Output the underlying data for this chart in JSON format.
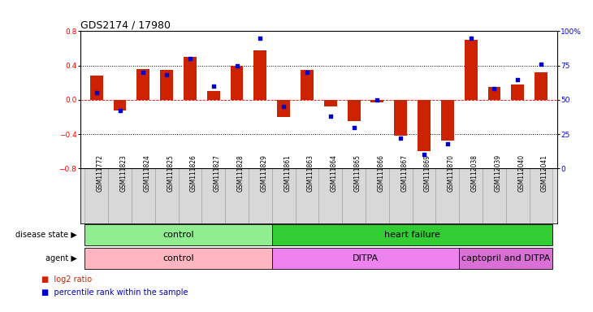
{
  "title": "GDS2174 / 17980",
  "samples": [
    "GSM111772",
    "GSM111823",
    "GSM111824",
    "GSM111825",
    "GSM111826",
    "GSM111827",
    "GSM111828",
    "GSM111829",
    "GSM111861",
    "GSM111863",
    "GSM111864",
    "GSM111865",
    "GSM111866",
    "GSM111867",
    "GSM111869",
    "GSM111870",
    "GSM112038",
    "GSM112039",
    "GSM112040",
    "GSM112041"
  ],
  "log2_ratio": [
    0.28,
    -0.12,
    0.36,
    0.35,
    0.5,
    0.1,
    0.4,
    0.58,
    -0.2,
    0.35,
    -0.08,
    -0.25,
    -0.03,
    -0.42,
    -0.6,
    -0.47,
    0.7,
    0.15,
    0.18,
    0.32
  ],
  "percentile_rank": [
    55,
    42,
    70,
    68,
    80,
    60,
    75,
    95,
    45,
    70,
    38,
    30,
    50,
    22,
    10,
    18,
    95,
    58,
    65,
    76
  ],
  "disease_state_groups": [
    {
      "label": "control",
      "start": 0,
      "end": 8,
      "color": "#90EE90"
    },
    {
      "label": "heart failure",
      "start": 8,
      "end": 20,
      "color": "#32CD32"
    }
  ],
  "agent_groups": [
    {
      "label": "control",
      "start": 0,
      "end": 8,
      "color": "#FFB6C1"
    },
    {
      "label": "DITPA",
      "start": 8,
      "end": 16,
      "color": "#EE82EE"
    },
    {
      "label": "captopril and DITPA",
      "start": 16,
      "end": 20,
      "color": "#DA70D6"
    }
  ],
  "ylim": [
    -0.8,
    0.8
  ],
  "yticks": [
    -0.8,
    -0.4,
    0.0,
    0.4,
    0.8
  ],
  "right_yticks": [
    0,
    25,
    50,
    75,
    100
  ],
  "bar_color": "#CC2200",
  "dot_color": "#0000CC",
  "background_color": "#FFFFFF",
  "title_fontsize": 9,
  "tick_fontsize": 6.5,
  "label_fontsize": 8
}
